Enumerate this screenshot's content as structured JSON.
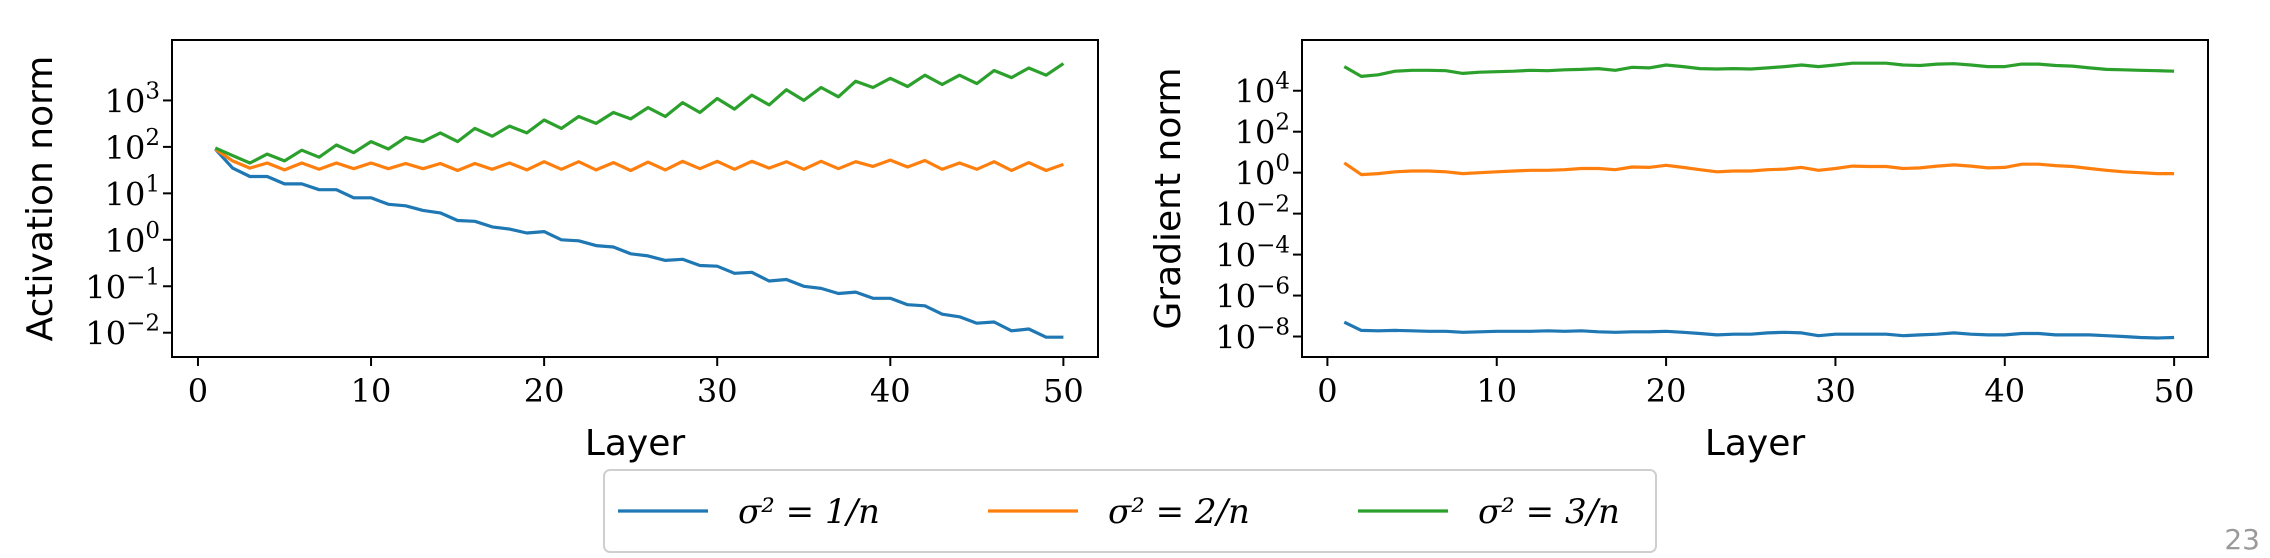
{
  "chart_data": [
    {
      "type": "line",
      "ylabel": "Activation norm",
      "xlabel": "Layer",
      "yscale": "log",
      "xlim": [
        -1.5,
        52
      ],
      "ylim": [
        0.003,
        20000
      ],
      "x_ticks": [
        0,
        10,
        20,
        30,
        40,
        50
      ],
      "y_ticks": [
        {
          "value": 0.01,
          "base": "10",
          "exp": "−2"
        },
        {
          "value": 0.1,
          "base": "10",
          "exp": "−1"
        },
        {
          "value": 1,
          "base": "10",
          "exp": "0"
        },
        {
          "value": 10,
          "base": "10",
          "exp": "1"
        },
        {
          "value": 100,
          "base": "10",
          "exp": "2"
        },
        {
          "value": 1000,
          "base": "10",
          "exp": "3"
        }
      ],
      "grid": false,
      "series": [
        {
          "name": "σ² = 1/n",
          "color": "#1f77b4",
          "x": [
            1,
            2,
            3,
            4,
            5,
            6,
            7,
            8,
            9,
            10,
            11,
            12,
            13,
            14,
            15,
            16,
            17,
            18,
            19,
            20,
            21,
            22,
            23,
            24,
            25,
            26,
            27,
            28,
            29,
            30,
            31,
            32,
            33,
            34,
            35,
            36,
            37,
            38,
            39,
            40,
            41,
            42,
            43,
            44,
            45,
            46,
            47,
            48,
            49,
            50
          ],
          "values": [
            90,
            35,
            23,
            23,
            16,
            16,
            12,
            12,
            8,
            8,
            5.8,
            5.4,
            4.3,
            3.8,
            2.6,
            2.5,
            1.9,
            1.7,
            1.4,
            1.5,
            1.0,
            0.95,
            0.75,
            0.7,
            0.5,
            0.45,
            0.36,
            0.38,
            0.28,
            0.27,
            0.19,
            0.2,
            0.13,
            0.14,
            0.1,
            0.09,
            0.07,
            0.075,
            0.055,
            0.055,
            0.04,
            0.038,
            0.025,
            0.022,
            0.016,
            0.017,
            0.011,
            0.012,
            0.008,
            0.008
          ]
        },
        {
          "name": "σ² = 2/n",
          "color": "#ff7f0e",
          "x": [
            1,
            2,
            3,
            4,
            5,
            6,
            7,
            8,
            9,
            10,
            11,
            12,
            13,
            14,
            15,
            16,
            17,
            18,
            19,
            20,
            21,
            22,
            23,
            24,
            25,
            26,
            27,
            28,
            29,
            30,
            31,
            32,
            33,
            34,
            35,
            36,
            37,
            38,
            39,
            40,
            41,
            42,
            43,
            44,
            45,
            46,
            47,
            48,
            49,
            50
          ],
          "values": [
            90,
            50,
            35,
            45,
            32,
            45,
            33,
            45,
            34,
            45,
            34,
            44,
            34,
            44,
            31,
            44,
            33,
            45,
            32,
            48,
            33,
            48,
            32,
            46,
            31,
            47,
            32,
            49,
            34,
            49,
            33,
            49,
            35,
            48,
            33,
            49,
            34,
            48,
            38,
            52,
            37,
            51,
            33,
            45,
            33,
            48,
            31,
            46,
            31,
            42
          ]
        },
        {
          "name": "σ² = 3/n",
          "color": "#2ca02c",
          "x": [
            1,
            2,
            3,
            4,
            5,
            6,
            7,
            8,
            9,
            10,
            11,
            12,
            13,
            14,
            15,
            16,
            17,
            18,
            19,
            20,
            21,
            22,
            23,
            24,
            25,
            26,
            27,
            28,
            29,
            30,
            31,
            32,
            33,
            34,
            35,
            36,
            37,
            38,
            39,
            40,
            41,
            42,
            43,
            44,
            45,
            46,
            47,
            48,
            49,
            50
          ],
          "values": [
            95,
            65,
            45,
            70,
            50,
            85,
            60,
            110,
            75,
            130,
            90,
            160,
            130,
            200,
            130,
            250,
            170,
            280,
            200,
            380,
            250,
            450,
            320,
            550,
            400,
            700,
            450,
            900,
            550,
            1100,
            650,
            1300,
            800,
            1700,
            1000,
            1900,
            1200,
            2600,
            1900,
            3000,
            2000,
            3500,
            2200,
            3500,
            2300,
            4400,
            3100,
            5000,
            3500,
            6200
          ]
        }
      ]
    },
    {
      "type": "line",
      "ylabel": "Gradient norm",
      "xlabel": "Layer",
      "yscale": "log",
      "xlim": [
        -1.5,
        52
      ],
      "ylim": [
        1e-09,
        3000000.0
      ],
      "x_ticks": [
        0,
        10,
        20,
        30,
        40,
        50
      ],
      "y_ticks": [
        {
          "value": 1e-08,
          "base": "10",
          "exp": "−8"
        },
        {
          "value": 1e-06,
          "base": "10",
          "exp": "−6"
        },
        {
          "value": 0.0001,
          "base": "10",
          "exp": "−4"
        },
        {
          "value": 0.01,
          "base": "10",
          "exp": "−2"
        },
        {
          "value": 1,
          "base": "10",
          "exp": "0"
        },
        {
          "value": 100,
          "base": "10",
          "exp": "2"
        },
        {
          "value": 10000,
          "base": "10",
          "exp": "4"
        }
      ],
      "grid": false,
      "series": [
        {
          "name": "σ² = 1/n",
          "color": "#1f77b4",
          "x": [
            1,
            2,
            3,
            4,
            5,
            6,
            7,
            8,
            9,
            10,
            11,
            12,
            13,
            14,
            15,
            16,
            17,
            18,
            19,
            20,
            21,
            22,
            23,
            24,
            25,
            26,
            27,
            28,
            29,
            30,
            31,
            32,
            33,
            34,
            35,
            36,
            37,
            38,
            39,
            40,
            41,
            42,
            43,
            44,
            45,
            46,
            47,
            48,
            49,
            50
          ],
          "values": [
            5e-08,
            2e-08,
            1.9e-08,
            2e-08,
            1.9e-08,
            1.8e-08,
            1.8e-08,
            1.6e-08,
            1.7e-08,
            1.8e-08,
            1.8e-08,
            1.8e-08,
            1.9e-08,
            1.8e-08,
            1.9e-08,
            1.7e-08,
            1.6e-08,
            1.7e-08,
            1.7e-08,
            1.8e-08,
            1.6e-08,
            1.4e-08,
            1.2e-08,
            1.3e-08,
            1.3e-08,
            1.5e-08,
            1.6e-08,
            1.5e-08,
            1.1e-08,
            1.3e-08,
            1.3e-08,
            1.3e-08,
            1.3e-08,
            1.1e-08,
            1.2e-08,
            1.3e-08,
            1.5e-08,
            1.3e-08,
            1.2e-08,
            1.2e-08,
            1.4e-08,
            1.4e-08,
            1.2e-08,
            1.2e-08,
            1.2e-08,
            1.1e-08,
            1e-08,
            9e-09,
            8.5e-09,
            9e-09
          ]
        },
        {
          "name": "σ² = 2/n",
          "color": "#ff7f0e",
          "x": [
            1,
            2,
            3,
            4,
            5,
            6,
            7,
            8,
            9,
            10,
            11,
            12,
            13,
            14,
            15,
            16,
            17,
            18,
            19,
            20,
            21,
            22,
            23,
            24,
            25,
            26,
            27,
            28,
            29,
            30,
            31,
            32,
            33,
            34,
            35,
            36,
            37,
            38,
            39,
            40,
            41,
            42,
            43,
            44,
            45,
            46,
            47,
            48,
            49,
            50
          ],
          "values": [
            3,
            0.8,
            0.9,
            1.1,
            1.2,
            1.2,
            1.1,
            0.9,
            1.0,
            1.1,
            1.2,
            1.3,
            1.3,
            1.4,
            1.6,
            1.6,
            1.4,
            1.9,
            1.8,
            2.3,
            1.8,
            1.4,
            1.1,
            1.2,
            1.2,
            1.4,
            1.5,
            1.8,
            1.3,
            1.6,
            2.1,
            2.0,
            2.0,
            1.6,
            1.7,
            2.1,
            2.4,
            2.1,
            1.7,
            1.8,
            2.6,
            2.6,
            2.2,
            2.0,
            1.6,
            1.3,
            1.1,
            1.0,
            0.9,
            0.9
          ]
        },
        {
          "name": "σ² = 3/n",
          "color": "#2ca02c",
          "x": [
            1,
            2,
            3,
            4,
            5,
            6,
            7,
            8,
            9,
            10,
            11,
            12,
            13,
            14,
            15,
            16,
            17,
            18,
            19,
            20,
            21,
            22,
            23,
            24,
            25,
            26,
            27,
            28,
            29,
            30,
            31,
            32,
            33,
            34,
            35,
            36,
            37,
            38,
            39,
            40,
            41,
            42,
            43,
            44,
            45,
            46,
            47,
            48,
            49,
            50
          ],
          "values": [
            150000,
            50000,
            60000,
            90000,
            100000,
            100000,
            95000,
            70000,
            80000,
            85000,
            90000,
            100000,
            95000,
            105000,
            110000,
            120000,
            100000,
            140000,
            130000,
            180000,
            150000,
            120000,
            115000,
            120000,
            115000,
            130000,
            150000,
            180000,
            150000,
            180000,
            220000,
            220000,
            220000,
            180000,
            170000,
            200000,
            210000,
            180000,
            150000,
            150000,
            200000,
            200000,
            170000,
            160000,
            130000,
            110000,
            105000,
            100000,
            95000,
            90000
          ]
        }
      ]
    }
  ],
  "legend": [
    {
      "label": "σ² = 1/n",
      "color": "#1f77b4"
    },
    {
      "label": "σ² = 2/n",
      "color": "#ff7f0e"
    },
    {
      "label": "σ² = 3/n",
      "color": "#2ca02c"
    }
  ],
  "page_number": "23"
}
